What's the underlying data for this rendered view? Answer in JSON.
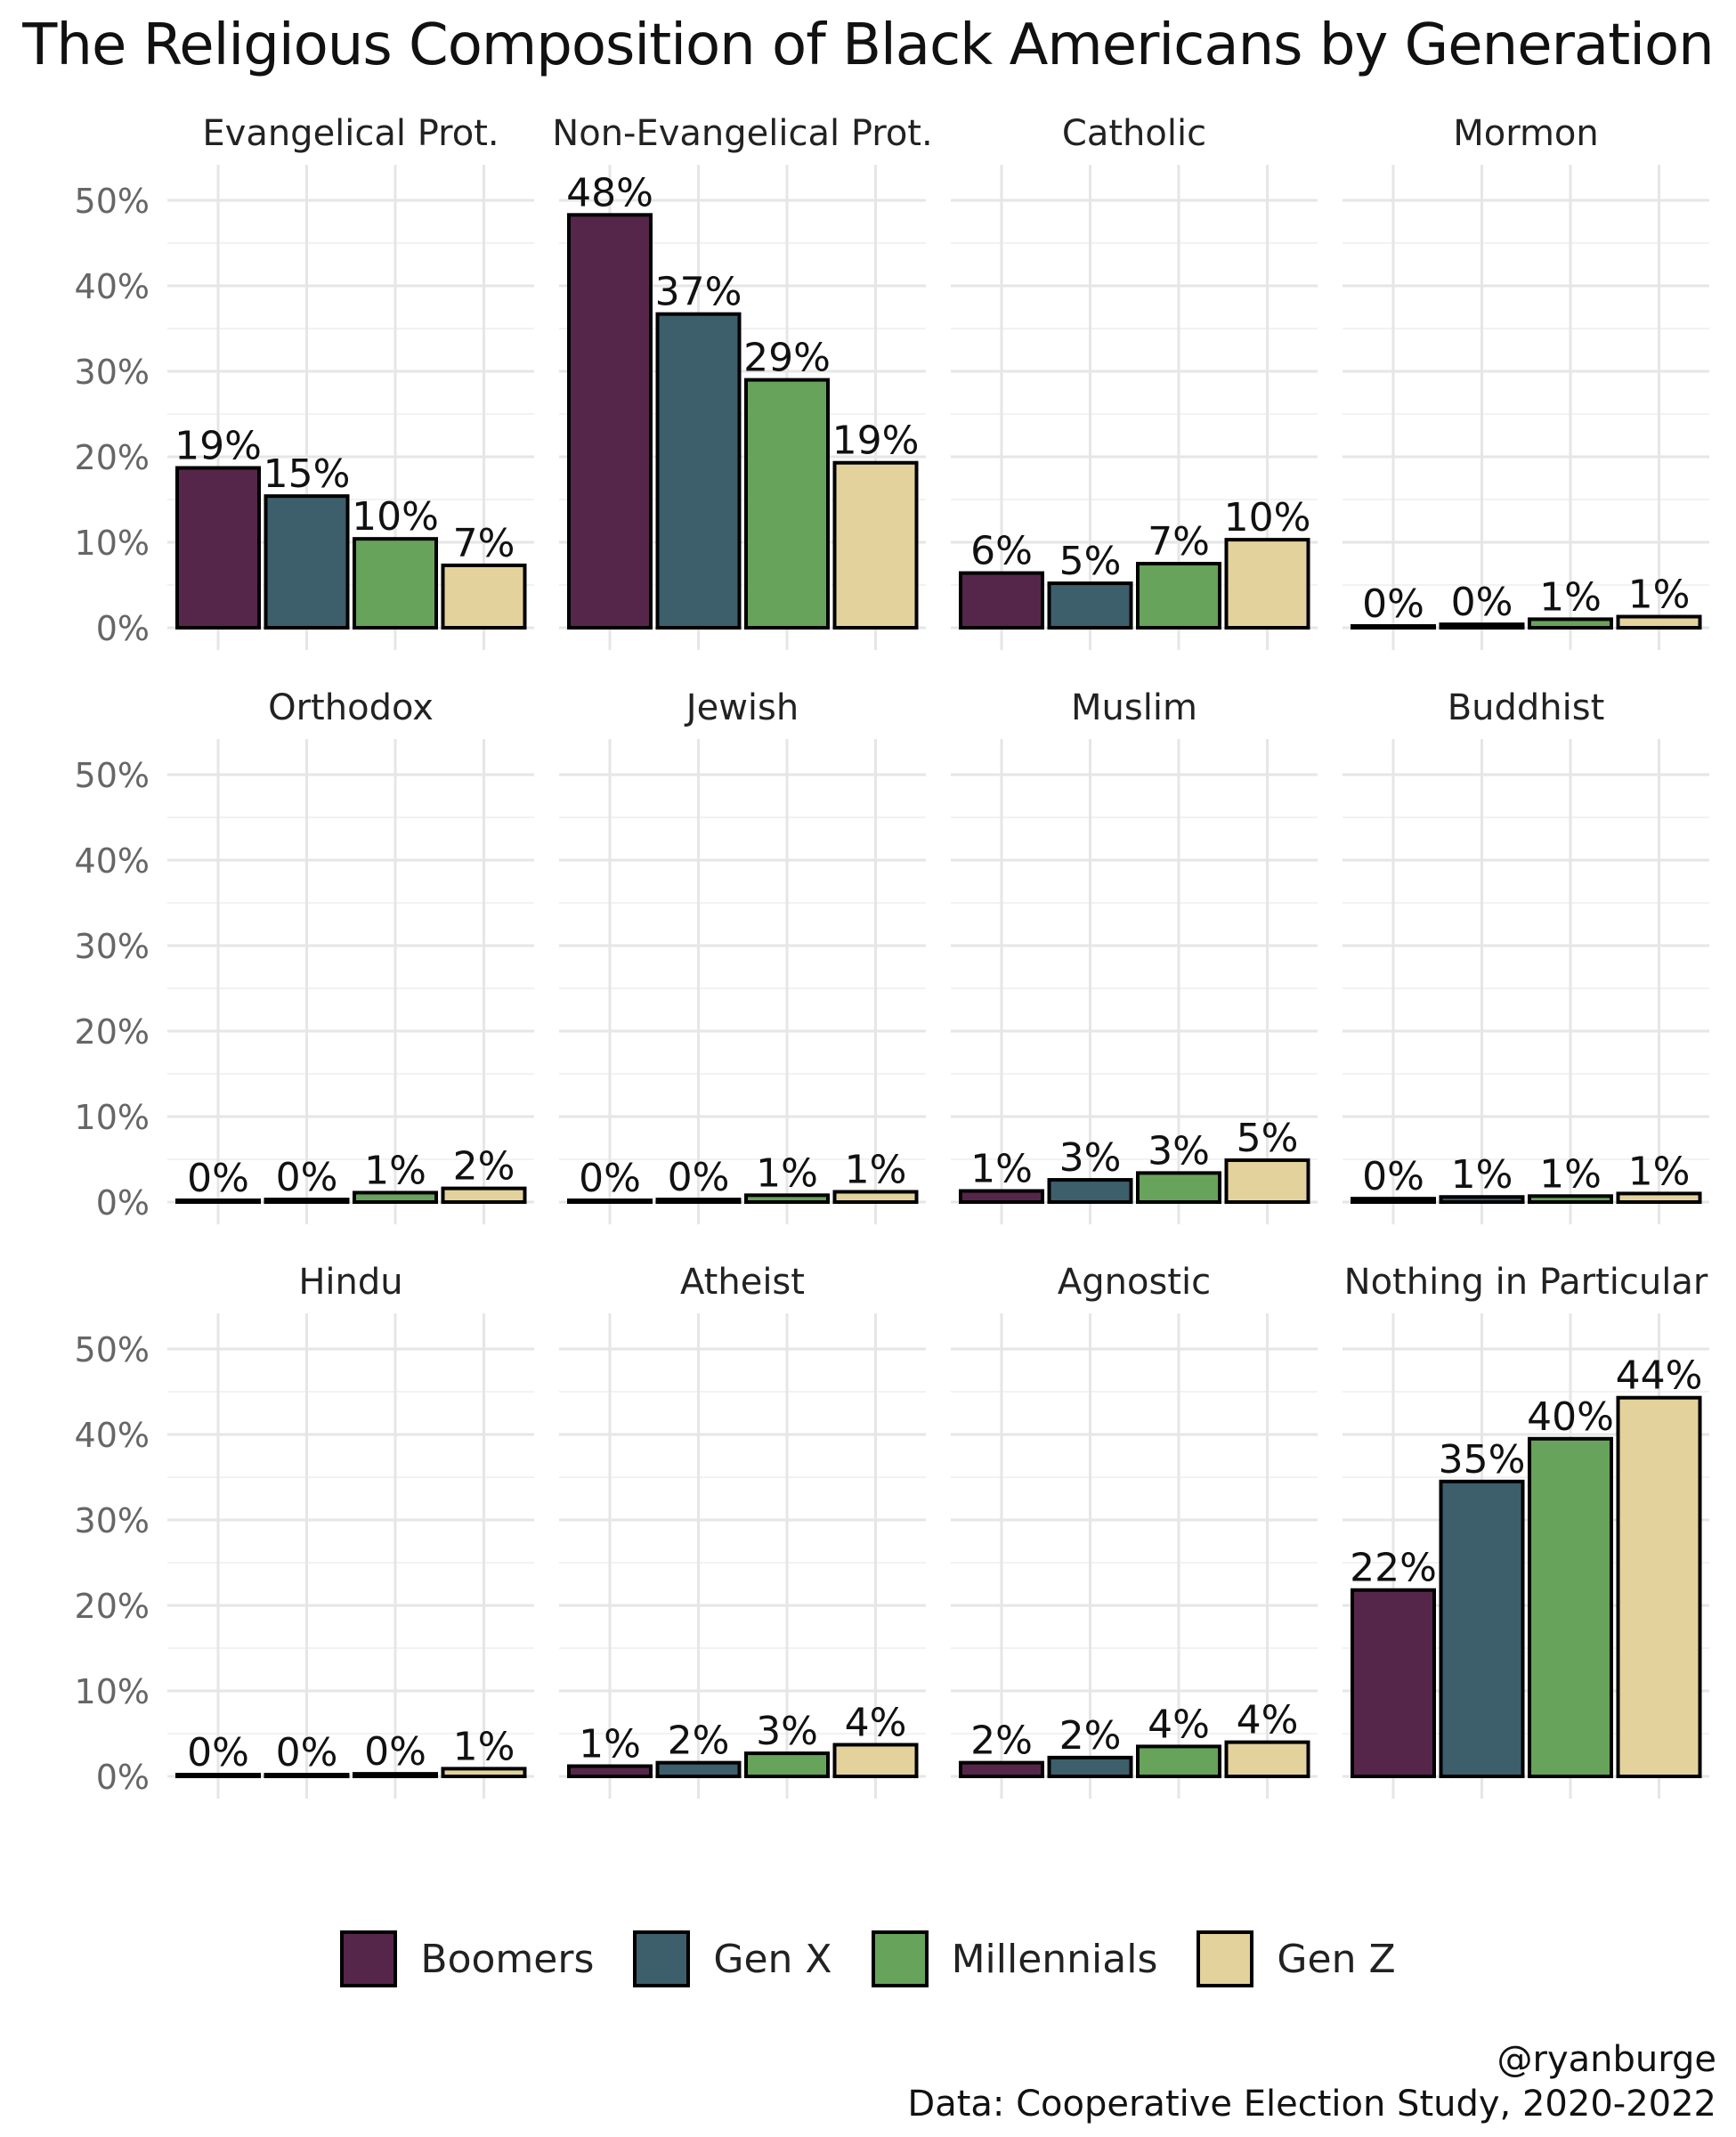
{
  "title": "The Religious Composition of Black Americans by Generation",
  "caption": {
    "handle": "@ryanburge",
    "source": "Data: Cooperative Election Study, 2020-2022"
  },
  "legend": [
    {
      "name": "Boomers",
      "color": "#56264A"
    },
    {
      "name": "Gen X",
      "color": "#3D5E6B"
    },
    {
      "name": "Millennials",
      "color": "#67A35A"
    },
    {
      "name": "Gen Z",
      "color": "#E3D29B"
    }
  ],
  "chart_data": {
    "type": "bar",
    "title": "The Religious Composition of Black Americans by Generation",
    "categories": [
      "Boomers",
      "Gen X",
      "Millennials",
      "Gen Z"
    ],
    "ylim": [
      0,
      0.5
    ],
    "yticks": [
      0,
      0.1,
      0.2,
      0.3,
      0.4,
      0.5
    ],
    "ytick_labels": [
      "0%",
      "10%",
      "20%",
      "30%",
      "40%",
      "50%"
    ],
    "grid": true,
    "legend_position": "bottom",
    "facets": [
      {
        "name": "Evangelical Prot.",
        "values": [
          0.187,
          0.154,
          0.104,
          0.073
        ],
        "labels": [
          "19%",
          "15%",
          "10%",
          "7%"
        ]
      },
      {
        "name": "Non-Evangelical Prot.",
        "values": [
          0.483,
          0.367,
          0.29,
          0.193
        ],
        "labels": [
          "48%",
          "37%",
          "29%",
          "19%"
        ]
      },
      {
        "name": "Catholic",
        "values": [
          0.064,
          0.052,
          0.075,
          0.103
        ],
        "labels": [
          "6%",
          "5%",
          "7%",
          "10%"
        ]
      },
      {
        "name": "Mormon",
        "values": [
          0.002,
          0.004,
          0.01,
          0.013
        ],
        "labels": [
          "0%",
          "0%",
          "1%",
          "1%"
        ]
      },
      {
        "name": "Orthodox",
        "values": [
          0.002,
          0.003,
          0.011,
          0.016
        ],
        "labels": [
          "0%",
          "0%",
          "1%",
          "2%"
        ]
      },
      {
        "name": "Jewish",
        "values": [
          0.002,
          0.003,
          0.008,
          0.012
        ],
        "labels": [
          "0%",
          "0%",
          "1%",
          "1%"
        ]
      },
      {
        "name": "Muslim",
        "values": [
          0.013,
          0.026,
          0.034,
          0.049
        ],
        "labels": [
          "1%",
          "3%",
          "3%",
          "5%"
        ]
      },
      {
        "name": "Buddhist",
        "values": [
          0.004,
          0.006,
          0.007,
          0.01
        ],
        "labels": [
          "0%",
          "1%",
          "1%",
          "1%"
        ]
      },
      {
        "name": "Hindu",
        "values": [
          0.001,
          0.001,
          0.003,
          0.009
        ],
        "labels": [
          "0%",
          "0%",
          "0%",
          "1%"
        ]
      },
      {
        "name": "Atheist",
        "values": [
          0.012,
          0.016,
          0.027,
          0.037
        ],
        "labels": [
          "1%",
          "2%",
          "3%",
          "4%"
        ]
      },
      {
        "name": "Agnostic",
        "values": [
          0.016,
          0.022,
          0.035,
          0.04
        ],
        "labels": [
          "2%",
          "2%",
          "4%",
          "4%"
        ]
      },
      {
        "name": "Nothing in Particular",
        "values": [
          0.218,
          0.345,
          0.395,
          0.443
        ],
        "labels": [
          "22%",
          "35%",
          "40%",
          "44%"
        ]
      }
    ]
  }
}
